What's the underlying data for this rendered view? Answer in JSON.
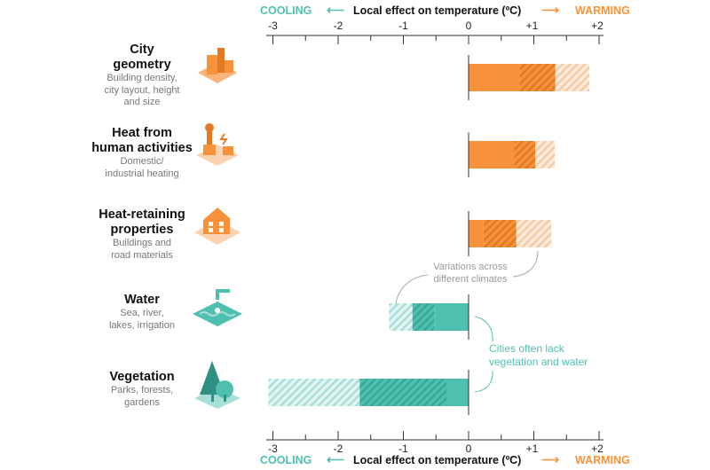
{
  "chart_data": {
    "type": "bar",
    "orientation": "horizontal",
    "title": "Local effect on temperature (ºC)",
    "left_label": "COOLING",
    "right_label": "WARMING",
    "xlim": [
      -3,
      2
    ],
    "xticks": [
      "-3",
      "-2",
      "-1",
      "0",
      "+1",
      "+2"
    ],
    "xtick_values": [
      -3,
      -2,
      -1,
      0,
      1,
      2
    ],
    "colors": {
      "warming": "#f7923a",
      "warming_light": "#f9c9a0",
      "cooling": "#4fc0b0",
      "cooling_light": "#a9ded7"
    },
    "categories": [
      {
        "title": "City geometry",
        "title_lines": [
          "City",
          "geometry"
        ],
        "subtitle_lines": [
          "Building density,",
          "city layout, height",
          "and size"
        ],
        "solid": 0.78,
        "range": 1.33,
        "variation": 1.85,
        "icon": "city-buildings-icon"
      },
      {
        "title": "Heat from human activities",
        "title_lines": [
          "Heat from",
          "human activities"
        ],
        "subtitle_lines": [
          "Domestic/",
          "industrial heating"
        ],
        "solid": 0.7,
        "range": 1.02,
        "variation": 1.32,
        "icon": "factory-chimney-icon"
      },
      {
        "title": "Heat-retaining properties",
        "title_lines": [
          "Heat-retaining",
          "properties"
        ],
        "subtitle_lines": [
          "Buildings and",
          "road materials"
        ],
        "solid": 0.23,
        "range": 0.73,
        "variation": 1.27,
        "icon": "house-icon"
      },
      {
        "title": "Water",
        "title_lines": [
          "Water"
        ],
        "subtitle_lines": [
          "Sea, river,",
          "lakes, irrigation"
        ],
        "solid": -0.52,
        "range": -0.86,
        "variation": -1.22,
        "icon": "water-tap-icon"
      },
      {
        "title": "Vegetation",
        "title_lines": [
          "Vegetation"
        ],
        "subtitle_lines": [
          "Parks, forests,",
          "gardens"
        ],
        "solid": -0.34,
        "range": -1.67,
        "variation": -3.07,
        "icon": "trees-icon"
      }
    ],
    "annotations": [
      {
        "lines": [
          "Variations across",
          "different climates"
        ]
      },
      {
        "lines": [
          "Cities often lack",
          "vegetation and water"
        ]
      }
    ],
    "grid": false
  }
}
